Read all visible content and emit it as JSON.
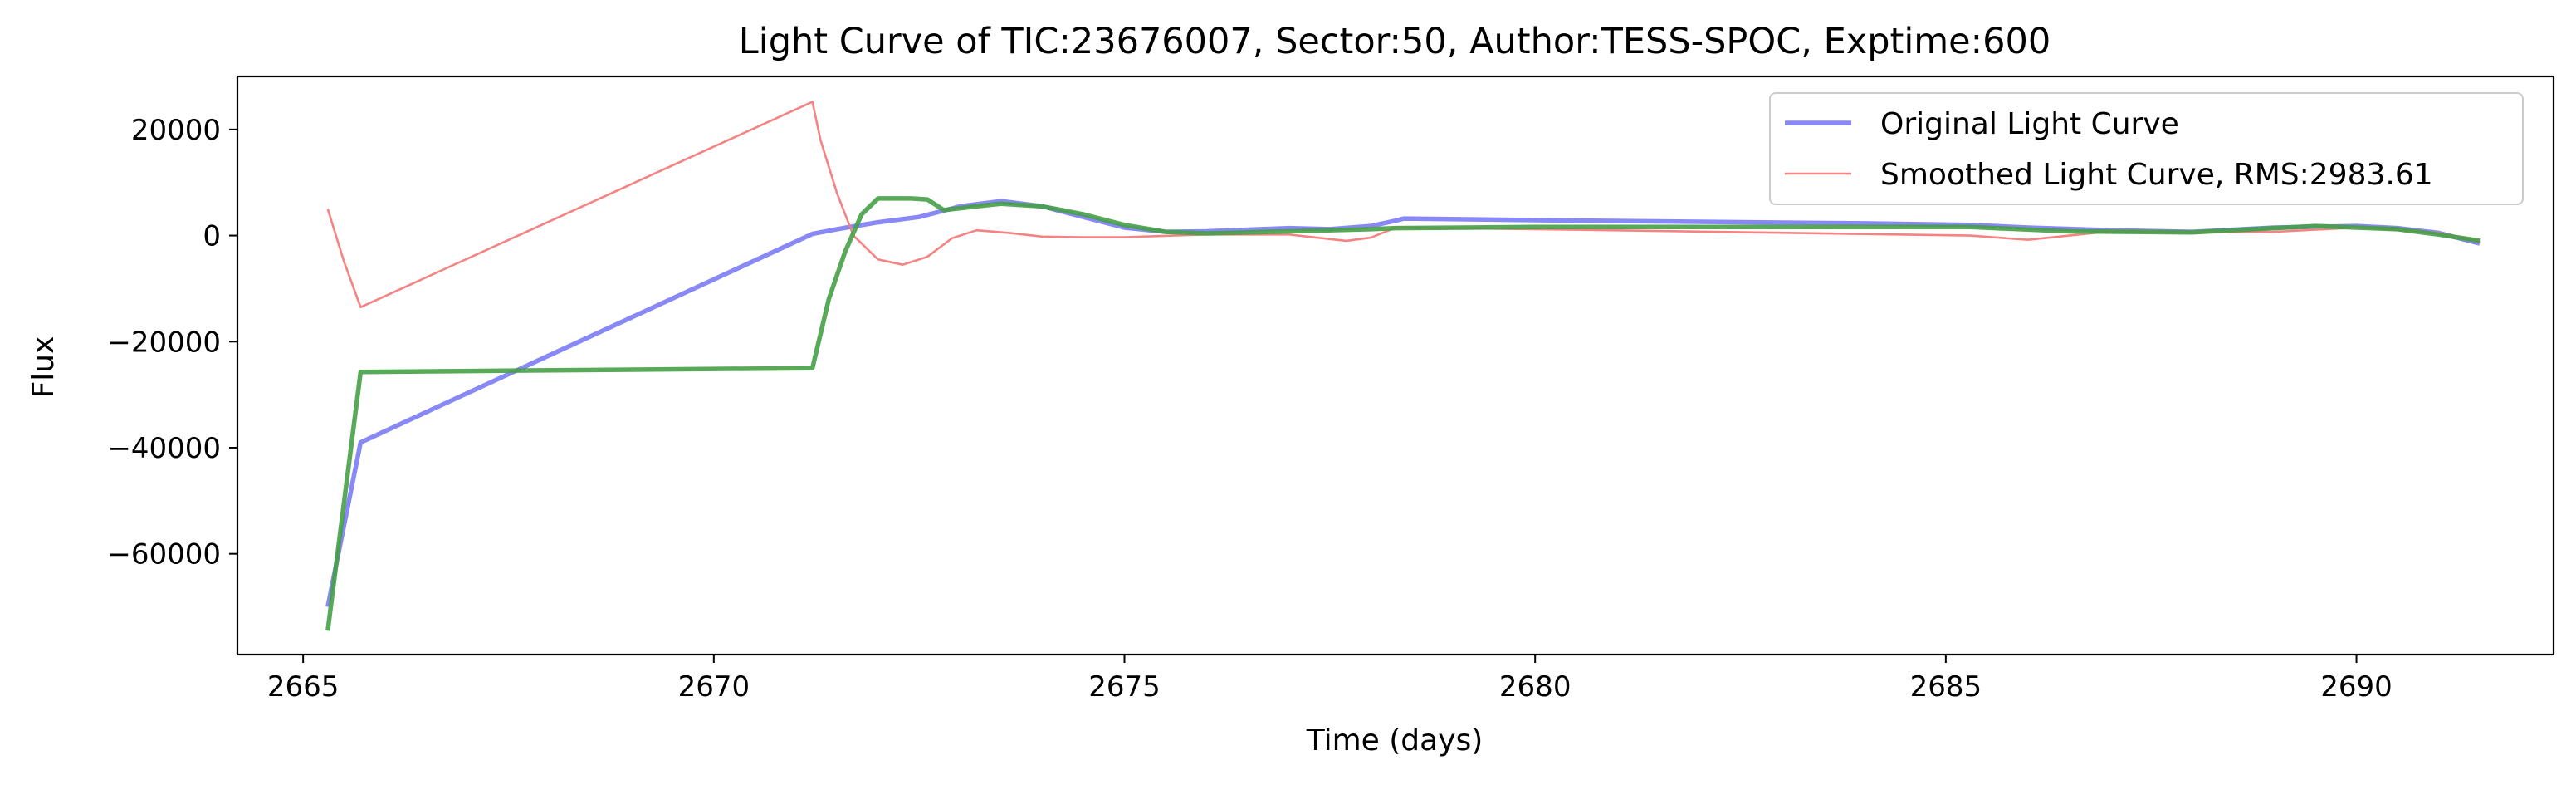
{
  "chart_data": {
    "type": "line",
    "title": "Light Curve of TIC:23676007, Sector:50, Author:TESS-SPOC, Exptime:600",
    "xlabel": "Time (days)",
    "ylabel": "Flux",
    "xlim": [
      2664.2,
      2692.4
    ],
    "ylim": [
      -79000,
      30000
    ],
    "xticks": [
      2665,
      2670,
      2675,
      2680,
      2685,
      2690
    ],
    "yticks": [
      20000,
      0,
      -20000,
      -40000,
      -60000
    ],
    "grid": false,
    "legend_position": "top-right",
    "series": [
      {
        "name": "Original Light Curve",
        "color": "#7b7bf5",
        "style": "thick",
        "x": [
          2665.3,
          2665.7,
          2671.2,
          2671.5,
          2672.0,
          2672.5,
          2673.0,
          2673.5,
          2674.0,
          2674.5,
          2675.0,
          2675.5,
          2676.0,
          2676.5,
          2677.0,
          2677.5,
          2678.0,
          2678.3,
          2678.4,
          2680.0,
          2682.0,
          2684.0,
          2685.3,
          2686.0,
          2687.0,
          2688.0,
          2689.0,
          2690.0,
          2690.5,
          2691.0,
          2691.5
        ],
        "y": [
          -70000,
          -39000,
          300,
          1200,
          2500,
          3500,
          5500,
          6500,
          5500,
          3500,
          1500,
          700,
          800,
          1100,
          1400,
          1200,
          1800,
          2800,
          3200,
          2900,
          2600,
          2300,
          2000,
          1500,
          1000,
          700,
          1500,
          1800,
          1400,
          500,
          -1500
        ]
      },
      {
        "name": "Smoothed Light Curve, RMS:2983.61",
        "color": "#f47c7c",
        "style": "thin",
        "x": [
          2665.3,
          2665.5,
          2665.7,
          2671.2,
          2671.3,
          2671.5,
          2671.7,
          2672.0,
          2672.3,
          2672.6,
          2672.9,
          2673.2,
          2673.6,
          2674.0,
          2674.5,
          2675.0,
          2676.0,
          2677.0,
          2677.7,
          2678.0,
          2678.3,
          2680.0,
          2685.3,
          2686.0,
          2687.0,
          2688.0,
          2689.0,
          2690.0,
          2691.0,
          2691.5
        ],
        "y": [
          5000,
          -5000,
          -13500,
          25200,
          18000,
          8000,
          0,
          -4500,
          -5500,
          -4000,
          -500,
          1000,
          500,
          -200,
          -300,
          -300,
          200,
          200,
          -1000,
          -400,
          1500,
          1200,
          0,
          -800,
          800,
          600,
          700,
          1500,
          500,
          -1000
        ]
      },
      {
        "name": "",
        "color": "#46a046",
        "style": "thick",
        "x": [
          2665.3,
          2665.7,
          2671.2,
          2671.4,
          2671.6,
          2671.8,
          2672.0,
          2672.4,
          2672.6,
          2672.8,
          2673.2,
          2673.5,
          2674.0,
          2674.5,
          2675.0,
          2675.5,
          2676.0,
          2677.0,
          2678.0,
          2678.3,
          2680.0,
          2685.3,
          2686.5,
          2688.0,
          2689.5,
          2690.5,
          2691.0,
          2691.5
        ],
        "y": [
          -74500,
          -25700,
          -25000,
          -12000,
          -3000,
          4000,
          7000,
          7000,
          6800,
          4800,
          5500,
          6000,
          5500,
          4000,
          2000,
          700,
          400,
          800,
          1200,
          1400,
          1600,
          1600,
          800,
          600,
          1800,
          1200,
          200,
          -1000
        ]
      }
    ]
  }
}
